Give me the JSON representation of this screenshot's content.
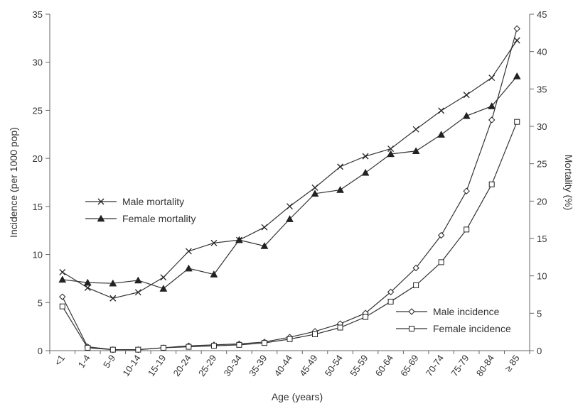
{
  "chart_data": {
    "type": "line",
    "xlabel": "Age (years)",
    "ylabel_left": "Incidence (per 1000 pop)",
    "ylabel_right": "Mortality (%)",
    "ylim_left": [
      0,
      35
    ],
    "ylim_right": [
      0,
      45
    ],
    "yticks_left": [
      "0",
      "5",
      "10",
      "15",
      "20",
      "25",
      "30",
      "35"
    ],
    "yticks_right": [
      "0",
      "5",
      "10",
      "15",
      "20",
      "25",
      "30",
      "35",
      "40",
      "45"
    ],
    "categories": [
      "<1",
      "1-4",
      "5-9",
      "10-14",
      "15-19",
      "20-24",
      "25-29",
      "30-34",
      "35-39",
      "40-44",
      "45-49",
      "50-54",
      "55-59",
      "60-64",
      "65-69",
      "70-74",
      "75-79",
      "80-84",
      "≥ 85"
    ],
    "series": [
      {
        "name": "Male mortality",
        "axis": "right",
        "marker": "x",
        "values": [
          10.5,
          8.4,
          7.0,
          7.8,
          9.8,
          13.3,
          14.4,
          14.8,
          16.5,
          19.3,
          21.8,
          24.6,
          26.0,
          27.0,
          29.6,
          32.1,
          34.2,
          36.5,
          41.5
        ]
      },
      {
        "name": "Female mortality",
        "axis": "right",
        "marker": "triangle",
        "values": [
          9.5,
          9.1,
          9.0,
          9.4,
          8.3,
          11.0,
          10.2,
          14.8,
          14.0,
          17.6,
          21.0,
          21.5,
          23.8,
          26.3,
          26.7,
          28.9,
          31.4,
          32.7,
          36.7
        ]
      },
      {
        "name": "Male incidence",
        "axis": "left",
        "marker": "diamond",
        "values": [
          5.6,
          0.4,
          0.1,
          0.1,
          0.3,
          0.5,
          0.6,
          0.7,
          0.9,
          1.4,
          2.0,
          2.8,
          3.9,
          6.1,
          8.6,
          12.0,
          16.6,
          24.0,
          33.5
        ]
      },
      {
        "name": "Female incidence",
        "axis": "left",
        "marker": "square",
        "values": [
          4.6,
          0.3,
          0.1,
          0.1,
          0.3,
          0.4,
          0.5,
          0.6,
          0.8,
          1.2,
          1.7,
          2.4,
          3.5,
          5.1,
          6.8,
          9.2,
          12.6,
          17.3,
          23.8
        ]
      }
    ]
  }
}
